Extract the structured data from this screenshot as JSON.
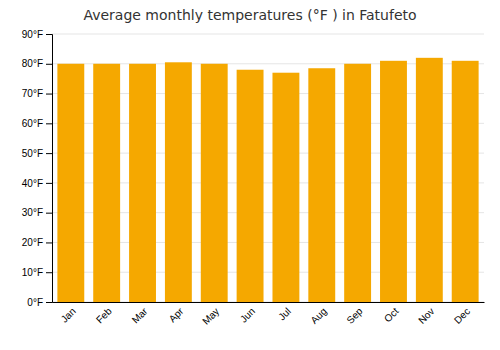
{
  "chart_data": {
    "type": "bar",
    "title": "Average monthly temperatures (°F ) in Fatufeto",
    "categories": [
      "Jan",
      "Feb",
      "Mar",
      "Apr",
      "May",
      "Jun",
      "Jul",
      "Aug",
      "Sep",
      "Oct",
      "Nov",
      "Dec"
    ],
    "values": [
      80.0,
      80.0,
      80.0,
      80.5,
      80.0,
      78.0,
      77.0,
      78.5,
      80.0,
      81.0,
      82.0,
      81.0
    ],
    "color": "#F5A800",
    "ylim": [
      0,
      90
    ],
    "yticks": [
      {
        "value": 0,
        "label": "0°F"
      },
      {
        "value": 10,
        "label": "10°F"
      },
      {
        "value": 20,
        "label": "20°F"
      },
      {
        "value": 30,
        "label": "30°F"
      },
      {
        "value": 40,
        "label": "40°F"
      },
      {
        "value": 50,
        "label": "50°F"
      },
      {
        "value": 60,
        "label": "60°F"
      },
      {
        "value": 70,
        "label": "70°F"
      },
      {
        "value": 80,
        "label": "80°F"
      },
      {
        "value": 90,
        "label": "90°F"
      }
    ],
    "grid": true
  }
}
